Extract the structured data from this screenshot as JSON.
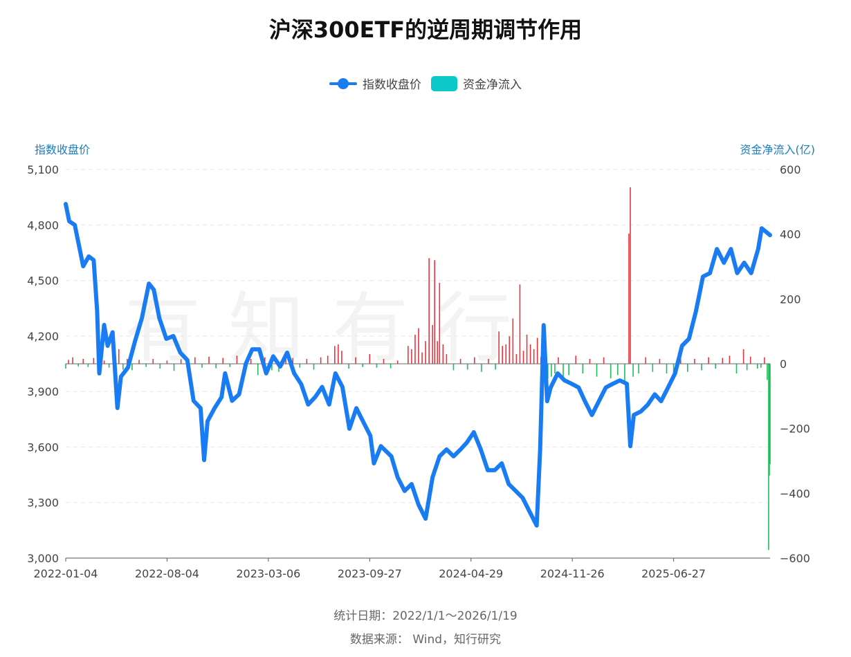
{
  "title": "沪深300ETF的逆周期调节作用",
  "watermark": "有知有行",
  "legend": [
    {
      "label": "指数收盘价",
      "color": "#1a7cf2"
    },
    {
      "label": "资金净流入",
      "color": "#0cc8c8"
    }
  ],
  "footer": {
    "period": "统计日期：2022/1/1～2026/1/19",
    "source": "数据来源： Wind，知行研究"
  },
  "chart_data": {
    "type": "bar+line",
    "title": "沪深300ETF的逆周期调节作用",
    "x_unit": "trading day index since 2022-01-04",
    "x_ticks": [
      {
        "t": 0,
        "label": "2022-01-04"
      },
      {
        "t": 145,
        "label": "2022-08-04"
      },
      {
        "t": 290,
        "label": "2023-03-06"
      },
      {
        "t": 435,
        "label": "2023-09-27"
      },
      {
        "t": 580,
        "label": "2024-04-29"
      },
      {
        "t": 725,
        "label": "2024-11-26"
      },
      {
        "t": 870,
        "label": "2025-06-27"
      }
    ],
    "x_range": [
      0,
      1008
    ],
    "left_axis": {
      "title": "指数收盘价",
      "range": [
        3000,
        5100
      ],
      "ticks": [
        "3,000",
        "3,300",
        "3,600",
        "3,900",
        "4,200",
        "4,500",
        "4,800",
        "5,100"
      ],
      "values": [
        3000,
        3300,
        3600,
        3900,
        4200,
        4500,
        4800,
        5100
      ]
    },
    "right_axis": {
      "title": "资金净流入(亿)",
      "range": [
        -600,
        600
      ],
      "ticks": [
        "−600",
        "−400",
        "−200",
        "0",
        "200",
        "400",
        "600"
      ],
      "values": [
        -600,
        -400,
        -200,
        0,
        200,
        400,
        600
      ]
    },
    "series": [
      {
        "name": "指数收盘价",
        "type": "line",
        "axis": "left",
        "color": "#1a7cf2",
        "points": [
          [
            0,
            4913
          ],
          [
            5,
            4820
          ],
          [
            13,
            4800
          ],
          [
            20,
            4670
          ],
          [
            25,
            4577
          ],
          [
            33,
            4630
          ],
          [
            40,
            4610
          ],
          [
            45,
            4334
          ],
          [
            48,
            3998
          ],
          [
            55,
            4260
          ],
          [
            60,
            4147
          ],
          [
            67,
            4220
          ],
          [
            74,
            3811
          ],
          [
            79,
            3980
          ],
          [
            89,
            4030
          ],
          [
            99,
            4170
          ],
          [
            109,
            4297
          ],
          [
            119,
            4483
          ],
          [
            126,
            4450
          ],
          [
            134,
            4297
          ],
          [
            144,
            4185
          ],
          [
            154,
            4200
          ],
          [
            164,
            4110
          ],
          [
            174,
            4070
          ],
          [
            183,
            3850
          ],
          [
            193,
            3810
          ],
          [
            198,
            3530
          ],
          [
            203,
            3740
          ],
          [
            213,
            3810
          ],
          [
            223,
            3870
          ],
          [
            228,
            3998
          ],
          [
            238,
            3850
          ],
          [
            248,
            3885
          ],
          [
            258,
            4053
          ],
          [
            267,
            4128
          ],
          [
            277,
            4128
          ],
          [
            287,
            3998
          ],
          [
            297,
            4090
          ],
          [
            307,
            4035
          ],
          [
            317,
            4110
          ],
          [
            327,
            3998
          ],
          [
            337,
            3940
          ],
          [
            347,
            3830
          ],
          [
            357,
            3870
          ],
          [
            367,
            3925
          ],
          [
            377,
            3830
          ],
          [
            386,
            3998
          ],
          [
            396,
            3925
          ],
          [
            406,
            3699
          ],
          [
            416,
            3810
          ],
          [
            426,
            3735
          ],
          [
            436,
            3661
          ],
          [
            441,
            3512
          ],
          [
            451,
            3605
          ],
          [
            466,
            3550
          ],
          [
            475,
            3437
          ],
          [
            485,
            3363
          ],
          [
            495,
            3400
          ],
          [
            505,
            3288
          ],
          [
            515,
            3213
          ],
          [
            520,
            3325
          ],
          [
            525,
            3437
          ],
          [
            535,
            3550
          ],
          [
            545,
            3587
          ],
          [
            555,
            3550
          ],
          [
            565,
            3587
          ],
          [
            574,
            3624
          ],
          [
            584,
            3680
          ],
          [
            594,
            3587
          ],
          [
            604,
            3475
          ],
          [
            614,
            3475
          ],
          [
            624,
            3512
          ],
          [
            634,
            3400
          ],
          [
            644,
            3363
          ],
          [
            654,
            3325
          ],
          [
            664,
            3250
          ],
          [
            674,
            3176
          ],
          [
            679,
            3587
          ],
          [
            684,
            4259
          ],
          [
            689,
            3848
          ],
          [
            694,
            3922
          ],
          [
            704,
            3998
          ],
          [
            714,
            3960
          ],
          [
            724,
            3942
          ],
          [
            734,
            3922
          ],
          [
            743,
            3848
          ],
          [
            753,
            3773
          ],
          [
            763,
            3848
          ],
          [
            773,
            3922
          ],
          [
            783,
            3942
          ],
          [
            793,
            3960
          ],
          [
            803,
            3942
          ],
          [
            808,
            3605
          ],
          [
            813,
            3773
          ],
          [
            823,
            3792
          ],
          [
            833,
            3829
          ],
          [
            843,
            3885
          ],
          [
            852,
            3848
          ],
          [
            862,
            3922
          ],
          [
            872,
            3998
          ],
          [
            882,
            4147
          ],
          [
            892,
            4185
          ],
          [
            902,
            4334
          ],
          [
            912,
            4521
          ],
          [
            922,
            4540
          ],
          [
            932,
            4670
          ],
          [
            942,
            4596
          ],
          [
            952,
            4670
          ],
          [
            961,
            4540
          ],
          [
            971,
            4596
          ],
          [
            981,
            4540
          ],
          [
            991,
            4670
          ],
          [
            996,
            4782
          ],
          [
            1008,
            4745
          ]
        ]
      },
      {
        "name": "资金净流入",
        "type": "bar",
        "axis": "right",
        "pos_color": "#e8343f",
        "neg_color": "#1fbe5a",
        "points": [
          [
            0,
            -15
          ],
          [
            4,
            12
          ],
          [
            10,
            20
          ],
          [
            18,
            -8
          ],
          [
            25,
            15
          ],
          [
            32,
            -10
          ],
          [
            40,
            18
          ],
          [
            48,
            -25
          ],
          [
            55,
            10
          ],
          [
            62,
            -12
          ],
          [
            70,
            25
          ],
          [
            76,
            45
          ],
          [
            82,
            -18
          ],
          [
            88,
            15
          ],
          [
            95,
            -20
          ],
          [
            105,
            12
          ],
          [
            115,
            -10
          ],
          [
            125,
            15
          ],
          [
            135,
            -15
          ],
          [
            145,
            10
          ],
          [
            155,
            -22
          ],
          [
            165,
            14
          ],
          [
            175,
            -18
          ],
          [
            185,
            20
          ],
          [
            195,
            -12
          ],
          [
            205,
            22
          ],
          [
            215,
            -14
          ],
          [
            225,
            18
          ],
          [
            235,
            -10
          ],
          [
            245,
            25
          ],
          [
            255,
            -30
          ],
          [
            265,
            15
          ],
          [
            275,
            -35
          ],
          [
            285,
            20
          ],
          [
            295,
            -20
          ],
          [
            305,
            -25
          ],
          [
            315,
            15
          ],
          [
            325,
            18
          ],
          [
            335,
            -12
          ],
          [
            345,
            15
          ],
          [
            355,
            -18
          ],
          [
            365,
            20
          ],
          [
            375,
            25
          ],
          [
            385,
            55
          ],
          [
            390,
            60
          ],
          [
            395,
            40
          ],
          [
            405,
            -15
          ],
          [
            415,
            20
          ],
          [
            425,
            -10
          ],
          [
            435,
            30
          ],
          [
            445,
            -12
          ],
          [
            455,
            15
          ],
          [
            465,
            -14
          ],
          [
            475,
            10
          ],
          [
            490,
            55
          ],
          [
            495,
            45
          ],
          [
            500,
            90
          ],
          [
            505,
            110
          ],
          [
            510,
            35
          ],
          [
            515,
            70
          ],
          [
            520,
            326
          ],
          [
            525,
            120
          ],
          [
            528,
            320
          ],
          [
            532,
            70
          ],
          [
            535,
            250
          ],
          [
            540,
            60
          ],
          [
            545,
            30
          ],
          [
            555,
            -20
          ],
          [
            565,
            15
          ],
          [
            575,
            -18
          ],
          [
            585,
            20
          ],
          [
            595,
            -25
          ],
          [
            605,
            15
          ],
          [
            615,
            -18
          ],
          [
            620,
            100
          ],
          [
            625,
            55
          ],
          [
            630,
            60
          ],
          [
            635,
            85
          ],
          [
            640,
            140
          ],
          [
            645,
            30
          ],
          [
            650,
            245
          ],
          [
            655,
            40
          ],
          [
            660,
            90
          ],
          [
            665,
            60
          ],
          [
            670,
            45
          ],
          [
            675,
            80
          ],
          [
            680,
            20
          ],
          [
            686,
            -60
          ],
          [
            690,
            -45
          ],
          [
            695,
            -40
          ],
          [
            700,
            -30
          ],
          [
            705,
            20
          ],
          [
            712,
            -50
          ],
          [
            720,
            -35
          ],
          [
            730,
            25
          ],
          [
            740,
            -30
          ],
          [
            750,
            15
          ],
          [
            760,
            -40
          ],
          [
            770,
            20
          ],
          [
            780,
            -45
          ],
          [
            790,
            -35
          ],
          [
            800,
            -55
          ],
          [
            806,
            402
          ],
          [
            808,
            545
          ],
          [
            812,
            -40
          ],
          [
            820,
            -30
          ],
          [
            830,
            20
          ],
          [
            840,
            -25
          ],
          [
            850,
            15
          ],
          [
            860,
            -30
          ],
          [
            870,
            -40
          ],
          [
            880,
            20
          ],
          [
            890,
            -25
          ],
          [
            900,
            15
          ],
          [
            910,
            -20
          ],
          [
            920,
            20
          ],
          [
            930,
            -15
          ],
          [
            940,
            18
          ],
          [
            950,
            25
          ],
          [
            960,
            -30
          ],
          [
            970,
            45
          ],
          [
            975,
            -20
          ],
          [
            980,
            22
          ],
          [
            990,
            -15
          ],
          [
            995,
            -12
          ],
          [
            1000,
            20
          ],
          [
            1004,
            -50
          ],
          [
            1006,
            -575
          ],
          [
            1007,
            -345
          ],
          [
            1008,
            -310
          ]
        ]
      }
    ],
    "grid": "horizontal dashed",
    "legend_position": "top-center"
  }
}
